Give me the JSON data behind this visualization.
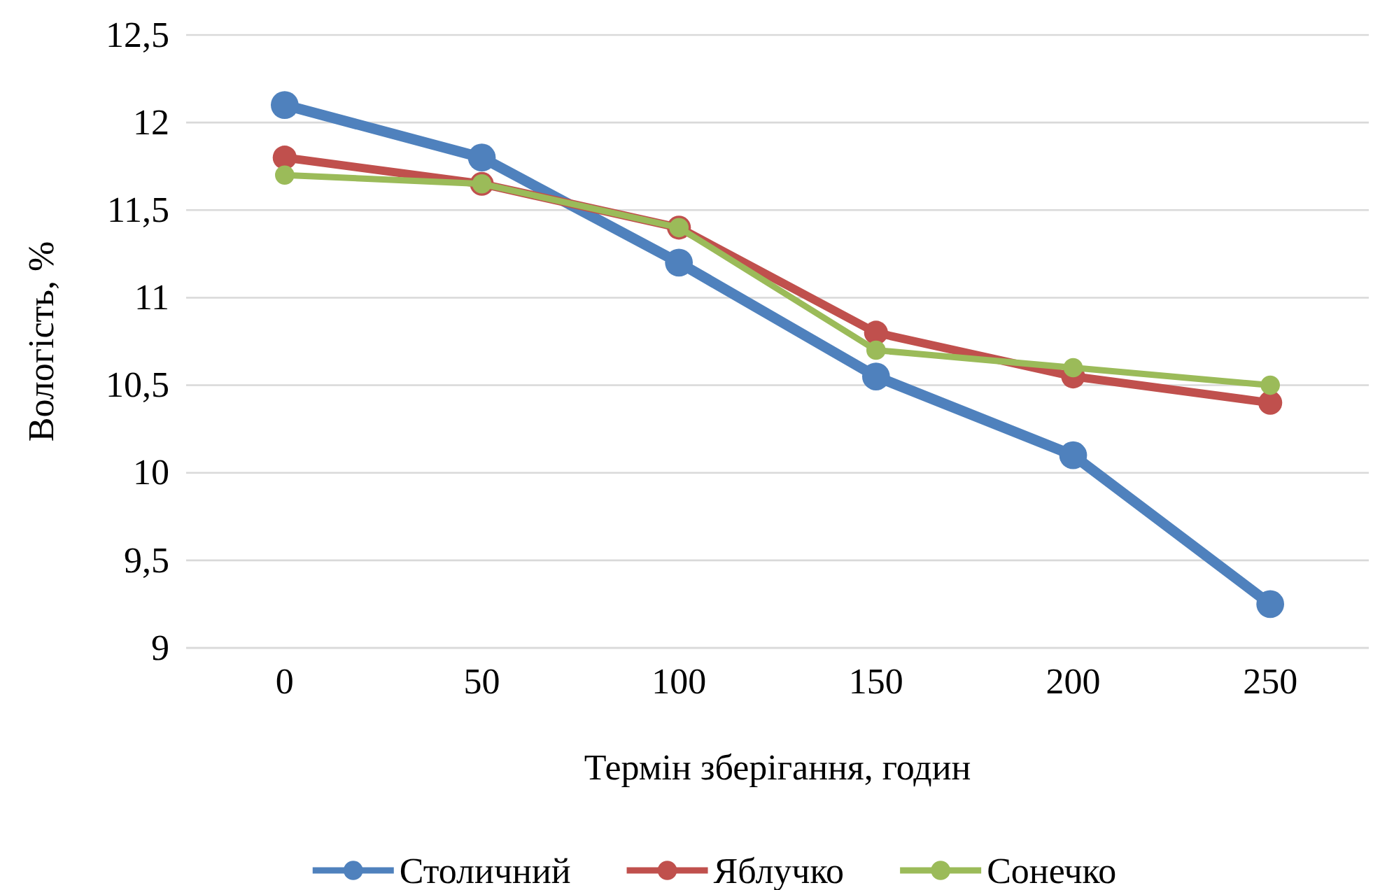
{
  "chart_data": {
    "type": "line",
    "xlabel": "Термін зберігання, годин",
    "ylabel": "Вологість, %",
    "categories": [
      "0",
      "50",
      "100",
      "150",
      "200",
      "250"
    ],
    "series": [
      {
        "name": "Столичний",
        "color": "#4f81bd",
        "values": [
          12.1,
          11.8,
          11.2,
          10.55,
          10.1,
          9.25
        ]
      },
      {
        "name": "Яблучко",
        "color": "#c0504d",
        "values": [
          11.8,
          11.65,
          11.4,
          10.8,
          10.55,
          10.4
        ]
      },
      {
        "name": "Сонечко",
        "color": "#9bbb59",
        "values": [
          11.7,
          11.65,
          11.4,
          10.7,
          10.6,
          10.5
        ]
      }
    ],
    "ylim": [
      9,
      12.5
    ],
    "yticks": [
      9,
      {
        "value": 9.5,
        "label": "9,5"
      },
      10,
      {
        "value": 10.5,
        "label": "10,5"
      },
      11,
      {
        "value": 11.5,
        "label": "11,5"
      },
      12,
      {
        "value": 12.5,
        "label": "12,5"
      }
    ],
    "grid": "y",
    "legend": "bottom",
    "marker": "circle",
    "line_style": "solid"
  }
}
